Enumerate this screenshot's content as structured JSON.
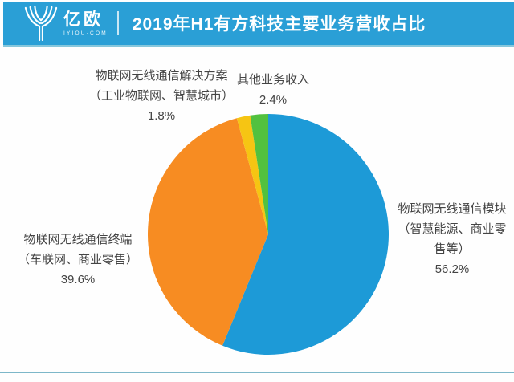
{
  "header": {
    "brand": "亿欧",
    "brand_sub": "IYIOU-COM",
    "title": "2019年H1有方科技主要业务营收占比",
    "background_color": "#2a9fd6"
  },
  "annotations": {
    "solution": {
      "lines": [
        "物联网无线通信解决方案",
        "（工业物联网、智慧城市）",
        "1.8%"
      ]
    },
    "other": {
      "lines": [
        "其他业务收入",
        "2.4%"
      ]
    },
    "module": {
      "lines": [
        "物联网无线通信模块",
        "（智慧能源、商业零",
        "售等）",
        "56.2%"
      ]
    },
    "terminal": {
      "lines": [
        "物联网无线通信终端",
        "（车联网、商业零售）",
        "39.6%"
      ]
    }
  },
  "chart_data": {
    "type": "pie",
    "title": "2019年H1有方科技主要业务营收占比",
    "unit": "%",
    "start_angle_deg": 0,
    "direction": "clockwise",
    "legend_position": "none",
    "slices": [
      {
        "label": "物联网无线通信模块（智慧能源、商业零售等）",
        "value": 56.2,
        "color": "#1d9ad7"
      },
      {
        "label": "物联网无线通信终端（车联网、商业零售）",
        "value": 39.6,
        "color": "#f78c22"
      },
      {
        "label": "物联网无线通信解决方案（工业物联网、智慧城市）",
        "value": 1.8,
        "color": "#f6c513"
      },
      {
        "label": "其他业务收入",
        "value": 2.4,
        "color": "#52c13f"
      }
    ]
  },
  "colors": {
    "header_blue": "#2a9fd6",
    "pie_blue": "#1d9ad7",
    "pie_orange": "#f78c22",
    "pie_yellow": "#f6c513",
    "pie_green": "#52c13f",
    "bottom_rule": "#7db7c9",
    "label_text": "#444444"
  }
}
